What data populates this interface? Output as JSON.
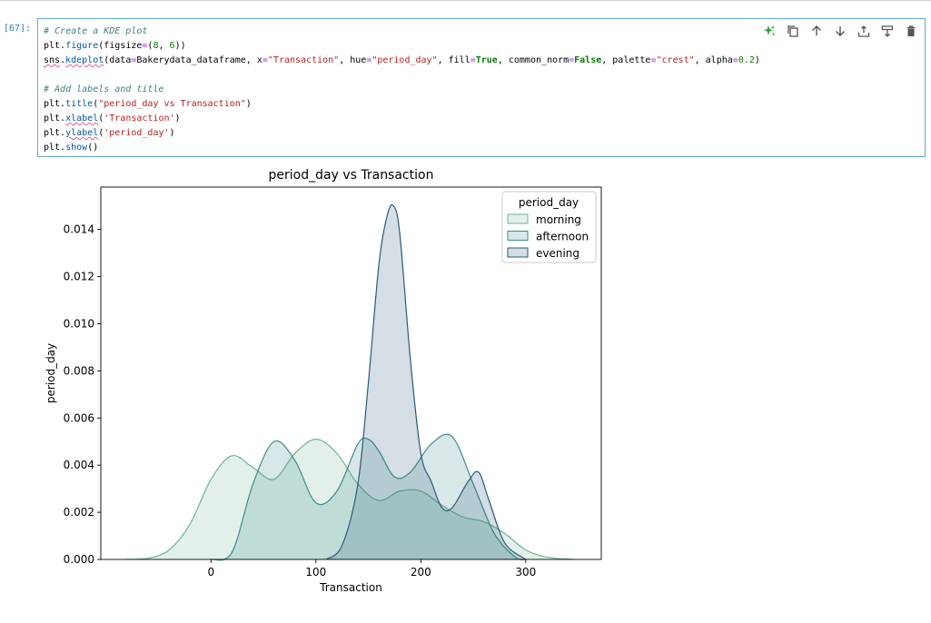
{
  "cell": {
    "prompt": "[67]:",
    "code_lines": [
      [
        {
          "t": "# Create a KDE plot",
          "c": "cm"
        }
      ],
      [
        {
          "t": "plt.",
          "c": ""
        },
        {
          "t": "figure",
          "c": "fn"
        },
        {
          "t": "(figsize",
          "c": ""
        },
        {
          "t": "=",
          "c": "op"
        },
        {
          "t": "(",
          "c": ""
        },
        {
          "t": "8",
          "c": "nu"
        },
        {
          "t": ", ",
          "c": ""
        },
        {
          "t": "6",
          "c": "nu"
        },
        {
          "t": "))",
          "c": ""
        }
      ],
      [
        {
          "t": "sns",
          "c": "sq"
        },
        {
          "t": ".",
          "c": ""
        },
        {
          "t": "kdeplot",
          "c": "fn sq"
        },
        {
          "t": "(data",
          "c": ""
        },
        {
          "t": "=",
          "c": "op"
        },
        {
          "t": "Bakerydata_dataframe, x",
          "c": ""
        },
        {
          "t": "=",
          "c": "op"
        },
        {
          "t": "\"Transaction\"",
          "c": "st"
        },
        {
          "t": ", hue",
          "c": ""
        },
        {
          "t": "=",
          "c": "op"
        },
        {
          "t": "\"period_day\"",
          "c": "st"
        },
        {
          "t": ", fill",
          "c": ""
        },
        {
          "t": "=",
          "c": "op"
        },
        {
          "t": "True",
          "c": "kw"
        },
        {
          "t": ", common_norm",
          "c": ""
        },
        {
          "t": "=",
          "c": "op"
        },
        {
          "t": "False",
          "c": "kw"
        },
        {
          "t": ", palette",
          "c": ""
        },
        {
          "t": "=",
          "c": "op"
        },
        {
          "t": "\"crest\"",
          "c": "st"
        },
        {
          "t": ", alpha",
          "c": ""
        },
        {
          "t": "=",
          "c": "op"
        },
        {
          "t": "0.2",
          "c": "nu"
        },
        {
          "t": ")",
          "c": ""
        }
      ],
      [
        {
          "t": "",
          "c": ""
        }
      ],
      [
        {
          "t": "# Add labels and title",
          "c": "cm"
        }
      ],
      [
        {
          "t": "plt.",
          "c": ""
        },
        {
          "t": "title",
          "c": "fn"
        },
        {
          "t": "(",
          "c": ""
        },
        {
          "t": "\"period_day vs Transaction\"",
          "c": "st"
        },
        {
          "t": ")",
          "c": ""
        }
      ],
      [
        {
          "t": "plt.",
          "c": ""
        },
        {
          "t": "xlabel",
          "c": "fn sq"
        },
        {
          "t": "(",
          "c": ""
        },
        {
          "t": "'Transaction'",
          "c": "st"
        },
        {
          "t": ")",
          "c": ""
        }
      ],
      [
        {
          "t": "plt.",
          "c": ""
        },
        {
          "t": "ylabel",
          "c": "fn sq"
        },
        {
          "t": "(",
          "c": ""
        },
        {
          "t": "'period_day'",
          "c": "st"
        },
        {
          "t": ")",
          "c": ""
        }
      ],
      [
        {
          "t": "plt.",
          "c": ""
        },
        {
          "t": "show",
          "c": "fn"
        },
        {
          "t": "()",
          "c": ""
        }
      ]
    ],
    "toolbar": [
      {
        "name": "ai-sparkle-icon",
        "color": "#2e9e3e"
      },
      {
        "name": "duplicate-cell-icon",
        "color": "#555555"
      },
      {
        "name": "move-up-icon",
        "color": "#555555"
      },
      {
        "name": "move-down-icon",
        "color": "#555555"
      },
      {
        "name": "insert-above-icon",
        "color": "#555555"
      },
      {
        "name": "insert-below-icon",
        "color": "#555555"
      },
      {
        "name": "delete-cell-icon",
        "color": "#555555"
      }
    ]
  },
  "chart_data": {
    "type": "area",
    "title": "period_day vs Transaction",
    "xlabel": "Transaction",
    "ylabel": "period_day",
    "xlim": [
      -105,
      372
    ],
    "ylim": [
      0,
      0.0158
    ],
    "xticks": [
      0,
      100,
      200,
      300
    ],
    "yticks": [
      0.0,
      0.002,
      0.004,
      0.006,
      0.008,
      0.01,
      0.012,
      0.014
    ],
    "ytick_labels": [
      "0.000",
      "0.002",
      "0.004",
      "0.006",
      "0.008",
      "0.010",
      "0.012",
      "0.014"
    ],
    "grid": false,
    "legend": {
      "title": "period_day",
      "placement": "top-right"
    },
    "series": [
      {
        "name": "morning",
        "color": "#6fb58f",
        "x": [
          -80,
          -60,
          -40,
          -20,
          0,
          20,
          40,
          60,
          80,
          100,
          120,
          140,
          160,
          180,
          200,
          220,
          240,
          260,
          280,
          300,
          320,
          345
        ],
        "y": [
          0.0,
          5e-05,
          0.0004,
          0.0015,
          0.0034,
          0.0044,
          0.0039,
          0.0034,
          0.0045,
          0.0051,
          0.0045,
          0.0032,
          0.0025,
          0.0029,
          0.0029,
          0.0023,
          0.0018,
          0.0016,
          0.0011,
          0.0004,
          0.0001,
          0.0
        ]
      },
      {
        "name": "afternoon",
        "color": "#3e8c8c",
        "x": [
          0,
          20,
          40,
          60,
          80,
          100,
          120,
          140,
          150,
          160,
          175,
          190,
          210,
          230,
          250,
          270,
          290,
          300
        ],
        "y": [
          0.0,
          0.0003,
          0.0032,
          0.005,
          0.0042,
          0.0024,
          0.0029,
          0.0049,
          0.0051,
          0.0046,
          0.0035,
          0.0037,
          0.0049,
          0.0052,
          0.0032,
          0.0011,
          0.0001,
          0.0
        ]
      },
      {
        "name": "evening",
        "color": "#2a5a7a",
        "x": [
          110,
          125,
          140,
          150,
          160,
          168,
          174,
          180,
          190,
          200,
          210,
          220,
          230,
          245,
          255,
          265,
          280,
          300
        ],
        "y": [
          0.0,
          0.0006,
          0.0032,
          0.0075,
          0.0125,
          0.0146,
          0.015,
          0.0138,
          0.0085,
          0.0045,
          0.0033,
          0.0022,
          0.0022,
          0.0033,
          0.0037,
          0.0025,
          0.0007,
          0.0
        ]
      }
    ]
  }
}
